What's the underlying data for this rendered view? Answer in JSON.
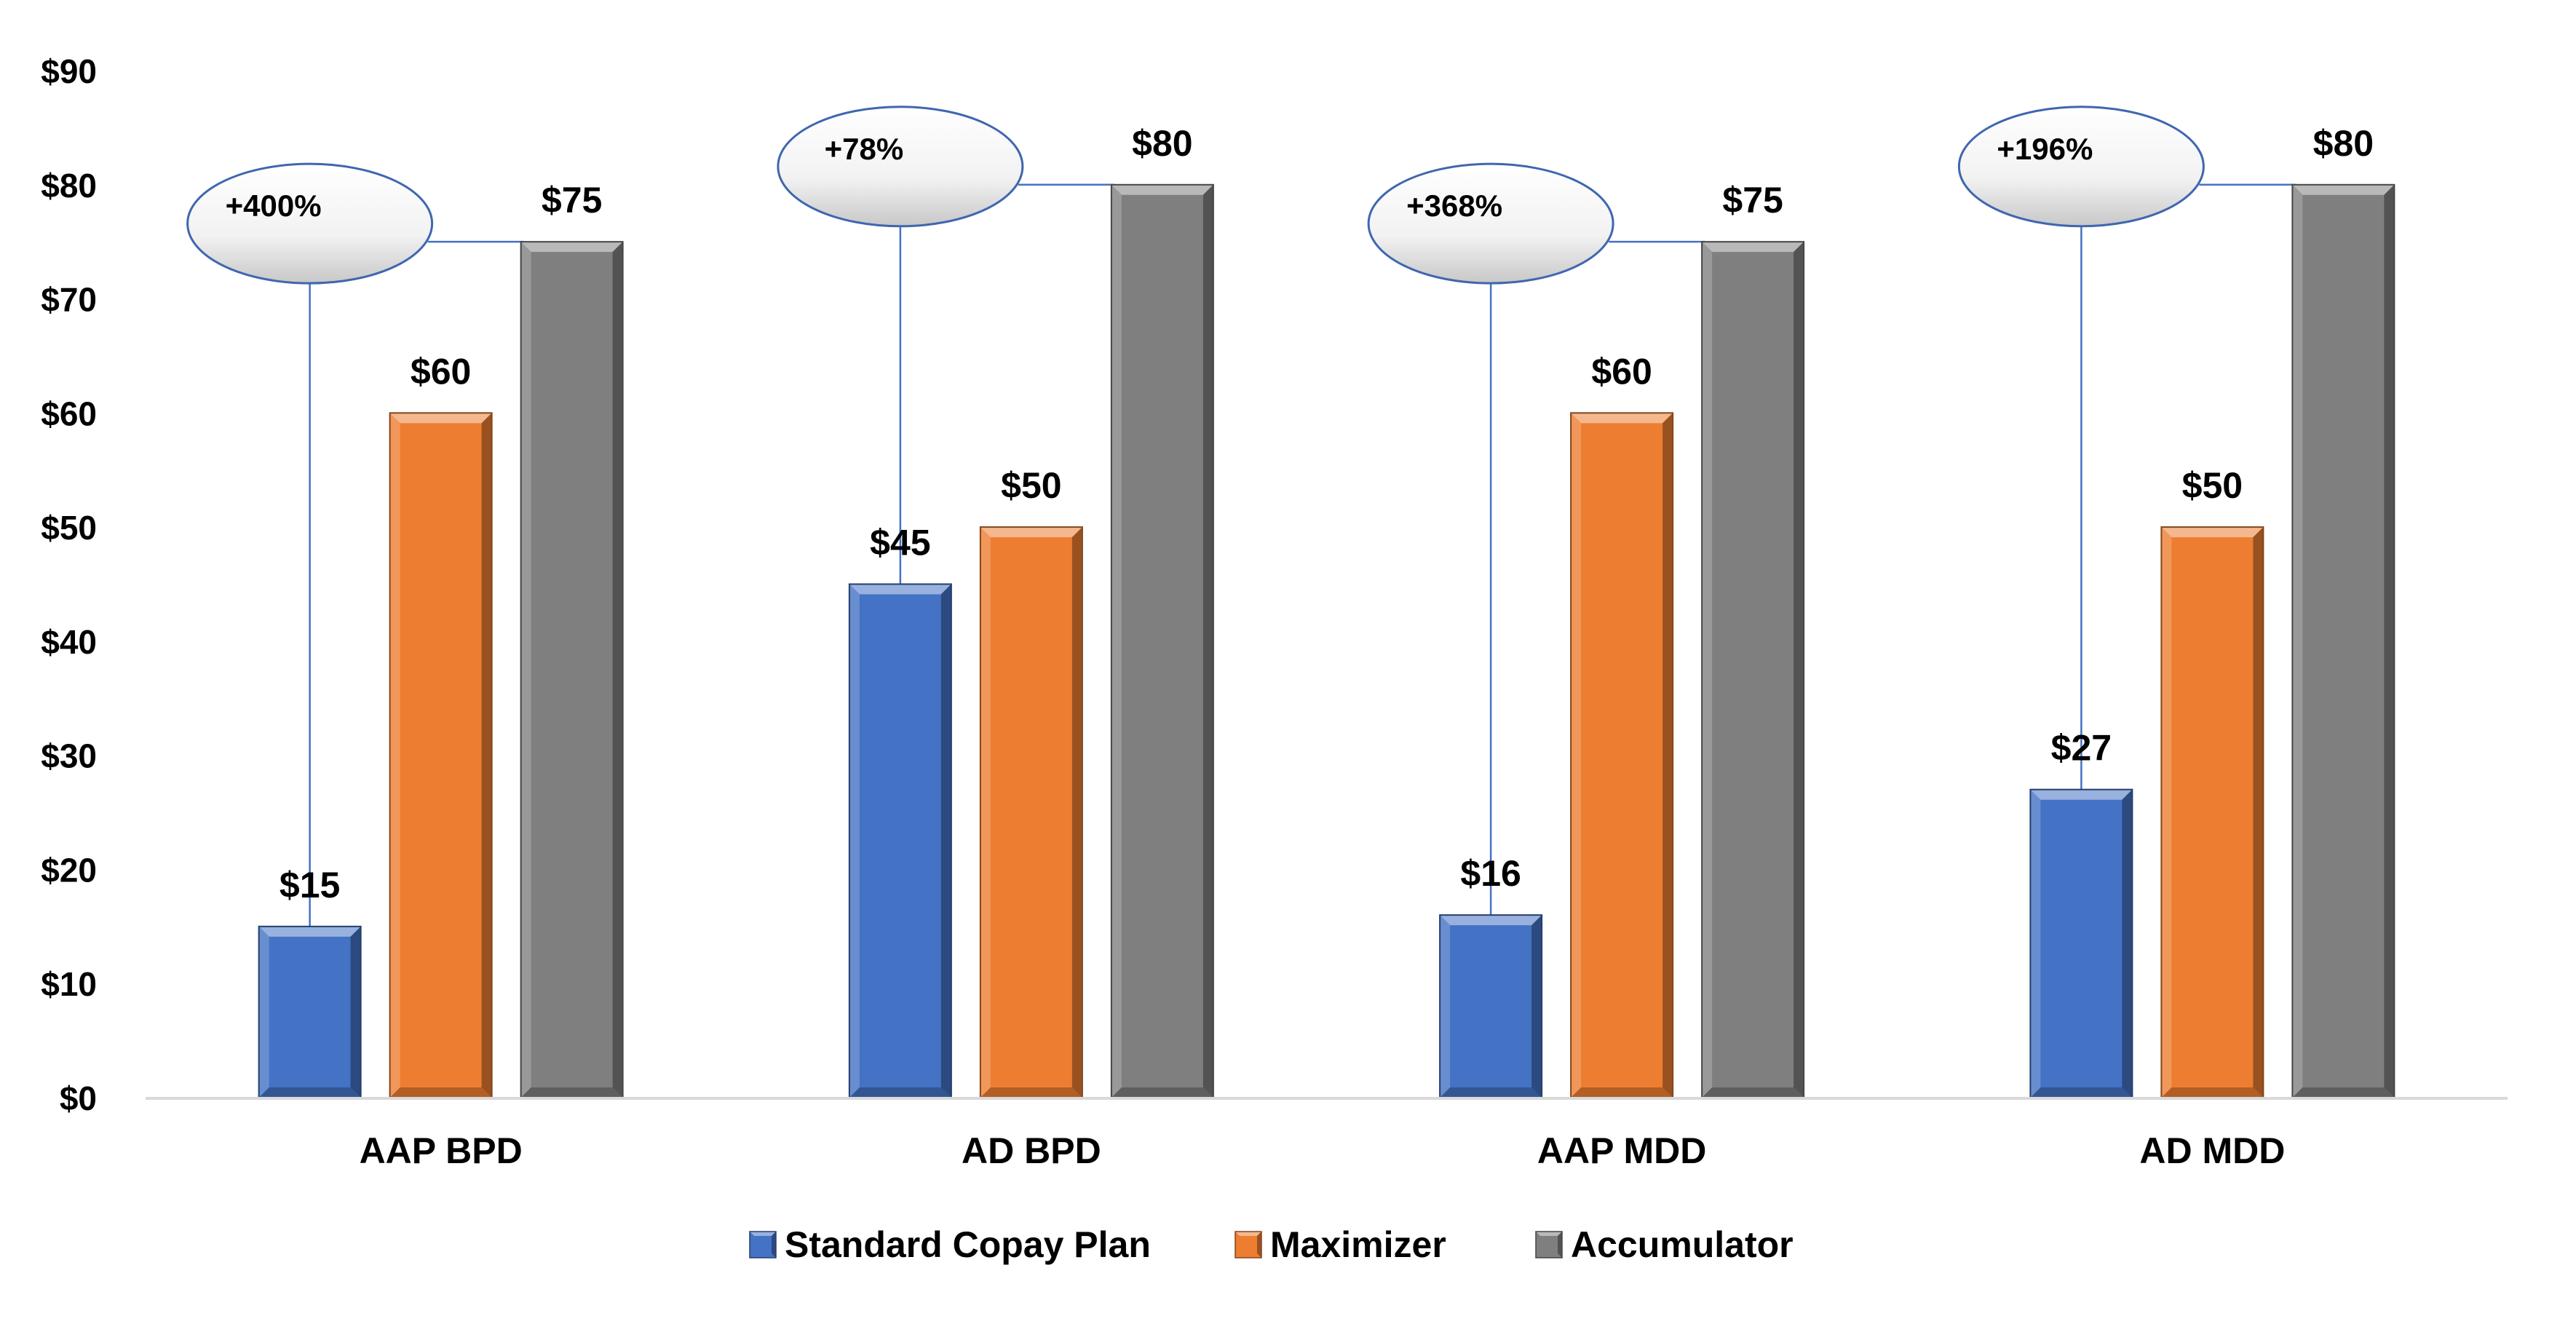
{
  "chart_data": {
    "type": "bar",
    "categories": [
      "AAP BPD",
      "AD BPD",
      "AAP MDD",
      "AD MDD"
    ],
    "series": [
      {
        "name": "Standard Copay Plan",
        "values": [
          15,
          45,
          16,
          27
        ],
        "labels": [
          "$15",
          "$45",
          "$16",
          "$27"
        ],
        "color": "#4472C4"
      },
      {
        "name": "Maximizer",
        "values": [
          60,
          50,
          60,
          50
        ],
        "labels": [
          "$60",
          "$50",
          "$60",
          "$50"
        ],
        "color": "#ED7D31"
      },
      {
        "name": "Accumulator",
        "values": [
          75,
          80,
          75,
          80
        ],
        "labels": [
          "$75",
          "$80",
          "$75",
          "$80"
        ],
        "color": "#7F7F7F"
      }
    ],
    "ylim": [
      0,
      90
    ],
    "yticks": [
      0,
      10,
      20,
      30,
      40,
      50,
      60,
      70,
      80,
      90
    ],
    "ytick_labels": [
      "$0",
      "$10",
      "$20",
      "$30",
      "$40",
      "$50",
      "$60",
      "$70",
      "$80",
      "$90"
    ],
    "annotations": [
      "+400%",
      "+78%",
      "+368%",
      "+196%"
    ],
    "xlabel": "",
    "ylabel": "",
    "legend_position": "bottom",
    "grid": false,
    "axis_color": "#D9D9D9",
    "callout_line_color": "#4472C4"
  }
}
